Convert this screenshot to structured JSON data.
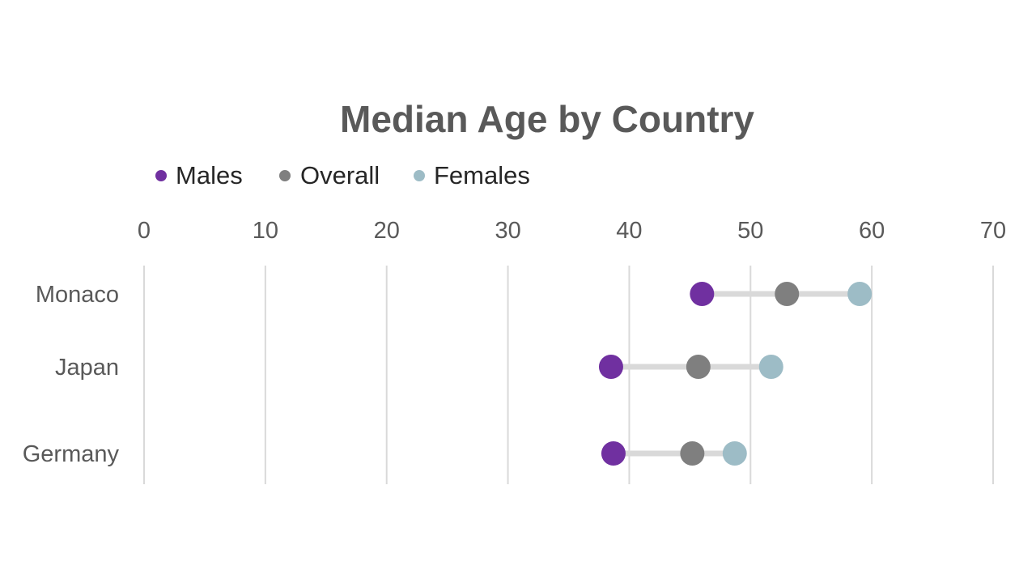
{
  "chart_data": {
    "type": "dot-plot",
    "title": "Median Age by Country",
    "categories": [
      "Monaco",
      "Japan",
      "Germany"
    ],
    "series": [
      {
        "name": "Males",
        "color": "#7030a0",
        "values": [
          46,
          38.5,
          38.7
        ]
      },
      {
        "name": "Overall",
        "color": "#7f7f7f",
        "values": [
          53,
          45.7,
          45.2
        ]
      },
      {
        "name": "Females",
        "color": "#9dbcc6",
        "values": [
          59,
          51.7,
          48.7
        ]
      }
    ],
    "xaxis": {
      "ticks": [
        "0",
        "10",
        "20",
        "30",
        "40",
        "50",
        "60",
        "70"
      ],
      "min": 0,
      "max": 70,
      "position": "top"
    },
    "grid": true,
    "legend_position": "top-left"
  }
}
